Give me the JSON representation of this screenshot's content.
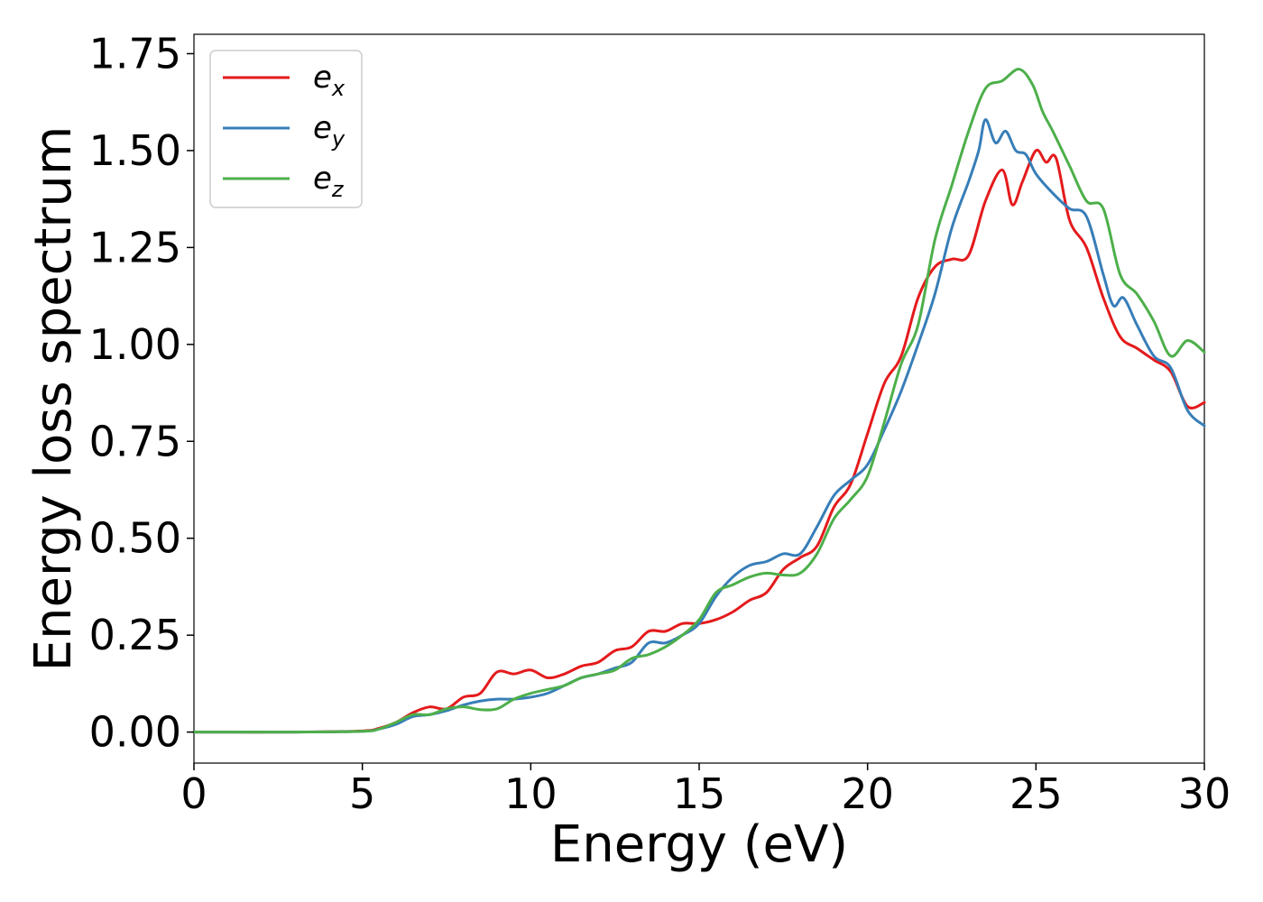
{
  "chart_data": {
    "type": "line",
    "title": "",
    "xlabel": "Energy (eV)",
    "ylabel": "Energy loss spectrum",
    "xlim": [
      0,
      30
    ],
    "ylim": [
      -0.08,
      1.8
    ],
    "xticks": [
      0,
      5,
      10,
      15,
      20,
      25,
      30
    ],
    "xtick_labels": [
      "0",
      "5",
      "10",
      "15",
      "20",
      "25",
      "30"
    ],
    "yticks": [
      0.0,
      0.25,
      0.5,
      0.75,
      1.0,
      1.25,
      1.5,
      1.75
    ],
    "ytick_labels": [
      "0.00",
      "0.25",
      "0.50",
      "0.75",
      "1.00",
      "1.25",
      "1.50",
      "1.75"
    ],
    "grid": false,
    "legend_position": "top-left",
    "series": [
      {
        "name": "e_x",
        "label_base": "e",
        "label_sub": "x",
        "color": "#e41a1c",
        "x": [
          0,
          3,
          5,
          5.5,
          6,
          6.5,
          7,
          7.5,
          8,
          8.5,
          9,
          9.5,
          10,
          10.5,
          11,
          11.5,
          12,
          12.5,
          13,
          13.5,
          14,
          14.5,
          15,
          15.5,
          16,
          16.5,
          17,
          17.5,
          18,
          18.5,
          19,
          19.5,
          20,
          20.5,
          21,
          21.5,
          22,
          22.5,
          23,
          23.5,
          24,
          24.3,
          24.6,
          25,
          25.3,
          25.6,
          26,
          26.5,
          27,
          27.5,
          28,
          28.5,
          29,
          29.5,
          30
        ],
        "y": [
          0,
          0,
          0.003,
          0.01,
          0.025,
          0.05,
          0.065,
          0.06,
          0.09,
          0.1,
          0.155,
          0.15,
          0.16,
          0.14,
          0.15,
          0.17,
          0.18,
          0.21,
          0.22,
          0.26,
          0.26,
          0.28,
          0.28,
          0.29,
          0.31,
          0.34,
          0.36,
          0.42,
          0.45,
          0.48,
          0.58,
          0.64,
          0.77,
          0.9,
          0.97,
          1.12,
          1.2,
          1.22,
          1.23,
          1.37,
          1.45,
          1.36,
          1.42,
          1.5,
          1.47,
          1.48,
          1.32,
          1.25,
          1.12,
          1.02,
          0.99,
          0.96,
          0.93,
          0.84,
          0.85
        ]
      },
      {
        "name": "e_y",
        "label_base": "e",
        "label_sub": "y",
        "color": "#377eb8",
        "x": [
          0,
          3,
          5,
          5.5,
          6,
          6.5,
          7,
          7.5,
          8,
          8.5,
          9,
          9.5,
          10,
          10.5,
          11,
          11.5,
          12,
          12.5,
          13,
          13.5,
          14,
          14.5,
          15,
          15.5,
          16,
          16.5,
          17,
          17.5,
          18,
          18.5,
          19,
          19.5,
          20,
          20.5,
          21,
          21.5,
          22,
          22.5,
          23,
          23.3,
          23.5,
          23.8,
          24.1,
          24.4,
          24.7,
          25,
          25.5,
          26,
          26.5,
          27,
          27.3,
          27.6,
          28,
          28.5,
          29,
          29.5,
          30
        ],
        "y": [
          0,
          0,
          0.002,
          0.008,
          0.02,
          0.04,
          0.045,
          0.055,
          0.07,
          0.08,
          0.085,
          0.085,
          0.09,
          0.1,
          0.12,
          0.14,
          0.15,
          0.165,
          0.18,
          0.23,
          0.23,
          0.25,
          0.28,
          0.35,
          0.4,
          0.43,
          0.44,
          0.46,
          0.46,
          0.53,
          0.61,
          0.65,
          0.69,
          0.78,
          0.88,
          1.0,
          1.13,
          1.3,
          1.42,
          1.5,
          1.58,
          1.52,
          1.55,
          1.5,
          1.49,
          1.44,
          1.39,
          1.35,
          1.33,
          1.18,
          1.1,
          1.12,
          1.05,
          0.97,
          0.94,
          0.83,
          0.79
        ]
      },
      {
        "name": "e_z",
        "label_base": "e",
        "label_sub": "z",
        "color": "#4daf4a",
        "x": [
          0,
          3,
          5,
          5.5,
          6,
          6.5,
          7,
          7.5,
          8,
          8.5,
          9,
          9.5,
          10,
          10.5,
          11,
          11.5,
          12,
          12.5,
          13,
          13.5,
          14,
          14.5,
          15,
          15.5,
          16,
          16.5,
          17,
          17.5,
          18,
          18.5,
          19,
          19.5,
          20,
          20.5,
          21,
          21.5,
          22,
          22.5,
          23,
          23.5,
          24,
          24.5,
          24.9,
          25.2,
          25.5,
          26,
          26.5,
          27,
          27.5,
          28,
          28.5,
          29,
          29.5,
          30
        ],
        "y": [
          0,
          0,
          0.002,
          0.008,
          0.025,
          0.045,
          0.045,
          0.06,
          0.065,
          0.058,
          0.06,
          0.085,
          0.1,
          0.11,
          0.12,
          0.14,
          0.15,
          0.16,
          0.19,
          0.2,
          0.22,
          0.25,
          0.29,
          0.36,
          0.38,
          0.4,
          0.41,
          0.405,
          0.41,
          0.46,
          0.55,
          0.6,
          0.66,
          0.8,
          0.95,
          1.05,
          1.27,
          1.41,
          1.55,
          1.66,
          1.68,
          1.71,
          1.67,
          1.6,
          1.55,
          1.46,
          1.37,
          1.35,
          1.18,
          1.13,
          1.06,
          0.97,
          1.01,
          0.98
        ]
      }
    ]
  }
}
